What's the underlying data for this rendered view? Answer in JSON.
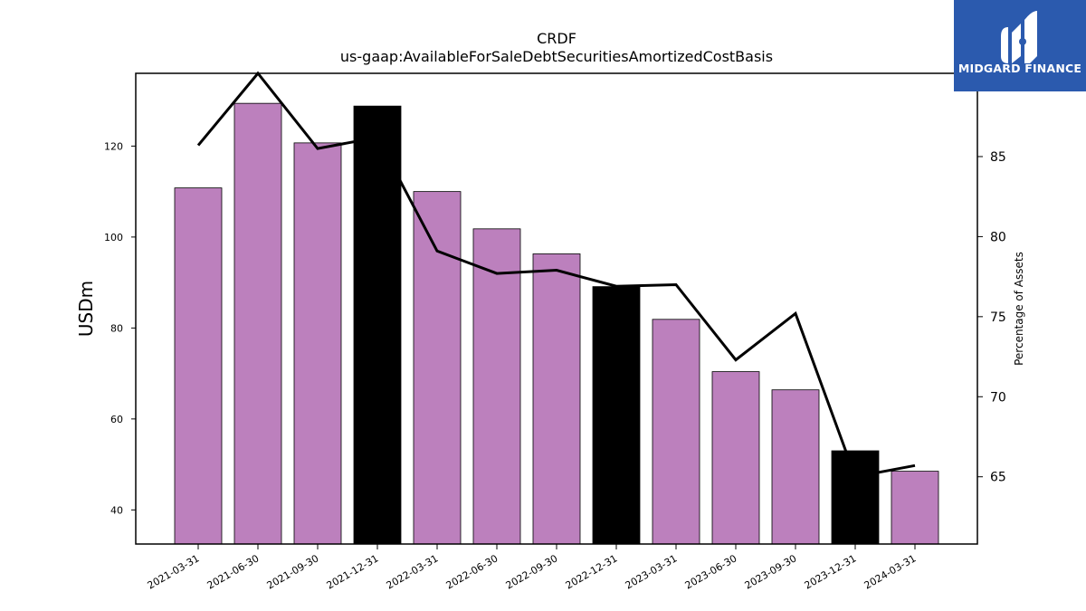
{
  "logo": {
    "text": "MIDGARD FINANCE",
    "background_color": "#2b5aae",
    "icon": "midgard-monogram-icon"
  },
  "chart_data": {
    "type": "bar",
    "title": "CRDF",
    "subtitle": "us-gaap:AvailableForSaleDebtSecuritiesAmortizedCostBasis",
    "xlabel": "",
    "ylabel": "USDm",
    "y2label": "Percentage of Assets",
    "categories": [
      "2021-03-31",
      "2021-06-30",
      "2021-09-30",
      "2021-12-31",
      "2022-03-31",
      "2022-06-30",
      "2022-09-30",
      "2022-12-31",
      "2023-03-31",
      "2023-06-30",
      "2023-09-30",
      "2023-12-31",
      "2024-03-31"
    ],
    "series": [
      {
        "type": "bar",
        "axis": "left",
        "values": [
          110.8,
          129.4,
          120.7,
          128.8,
          110.0,
          101.8,
          96.3,
          89.1,
          81.9,
          70.4,
          66.4,
          53.0,
          48.5
        ],
        "colors": [
          "#bc80bd",
          "#bc80bd",
          "#bc80bd",
          "#000000",
          "#bc80bd",
          "#bc80bd",
          "#bc80bd",
          "#000000",
          "#bc80bd",
          "#bc80bd",
          "#bc80bd",
          "#000000",
          "#bc80bd"
        ]
      },
      {
        "type": "line",
        "axis": "right",
        "color": "#000000",
        "values": [
          85.7,
          90.2,
          85.5,
          86.2,
          79.1,
          77.7,
          77.9,
          76.9,
          77.0,
          72.3,
          75.2,
          65.0,
          65.7
        ]
      }
    ],
    "ylim": [
      32.5,
      136.0
    ],
    "yticks": [
      40,
      60,
      80,
      100,
      120
    ],
    "y2lim": [
      60.8,
      90.2
    ],
    "y2ticks": [
      65,
      70,
      75,
      80,
      85
    ],
    "grid": false,
    "legend": "none"
  }
}
